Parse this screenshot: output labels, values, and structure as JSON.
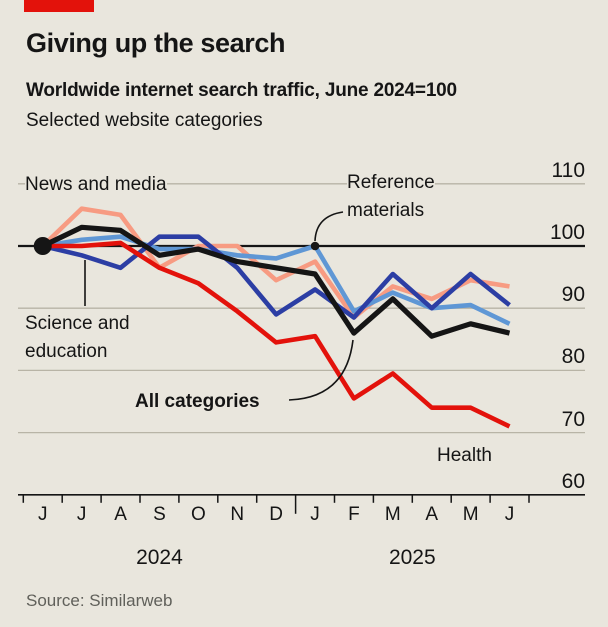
{
  "header": {
    "title": "Giving up the search",
    "subtitle": "Worldwide internet search traffic, June 2024=100",
    "description": "Selected website categories"
  },
  "chart_data": {
    "type": "line",
    "title": "Giving up the search",
    "subtitle": "Worldwide internet search traffic, June 2024=100",
    "x_categories": [
      "J",
      "J",
      "A",
      "S",
      "O",
      "N",
      "D",
      "J",
      "F",
      "M",
      "A",
      "M",
      "J"
    ],
    "x_year_groups": [
      {
        "label": "2024",
        "center_month_index": 3.0
      },
      {
        "label": "2025",
        "center_month_index": 9.5
      }
    ],
    "y_ticks": [
      110,
      100,
      90,
      80,
      70,
      60
    ],
    "ylim": [
      60,
      110
    ],
    "grid": true,
    "baseline_value": 100,
    "legend_position": "inline-annotations",
    "series": [
      {
        "name": "News and media",
        "color": "#f79b82",
        "values": [
          100,
          106,
          105,
          96.5,
          100,
          100,
          94.5,
          97.5,
          88.5,
          93.5,
          91.5,
          94.5,
          93.5
        ]
      },
      {
        "name": "Reference materials",
        "color": "#5f97d5",
        "values": [
          100,
          101,
          101.5,
          99.5,
          99.5,
          98.5,
          98,
          100,
          89.5,
          92.5,
          90,
          90.5,
          87.5
        ]
      },
      {
        "name": "Science and education",
        "color": "#2c3ea4",
        "values": [
          100,
          98.5,
          96.5,
          101.5,
          101.5,
          96.5,
          89,
          93,
          88.5,
          95.5,
          90,
          95.5,
          90.5
        ]
      },
      {
        "name": "Health",
        "color": "#e3120b",
        "values": [
          100,
          100,
          100.5,
          96.5,
          94,
          89.5,
          84.5,
          85.5,
          75.5,
          79.5,
          74,
          74,
          71
        ]
      },
      {
        "name": "All categories",
        "color": "#151515",
        "values": [
          100,
          103,
          102.5,
          98.5,
          99.5,
          97.5,
          96.5,
          95.5,
          86,
          91.5,
          85.5,
          87.5,
          86
        ]
      }
    ],
    "start_dot": {
      "month_index": 0,
      "value": 100
    },
    "reference_dot": {
      "month_index": 7,
      "value": 100
    }
  },
  "annotations": {
    "news_media": "News and media",
    "reference_line1": "Reference",
    "reference_line2": "materials",
    "science_line1": "Science and",
    "science_line2": "education",
    "all_categories": "All categories",
    "health": "Health"
  },
  "source": "Source: Similarweb",
  "colors": {
    "background": "#e9e6dd",
    "accent_red": "#e3120b",
    "gridline": "#b8b4a6",
    "axis": "#151515",
    "source_text": "#60605a"
  }
}
